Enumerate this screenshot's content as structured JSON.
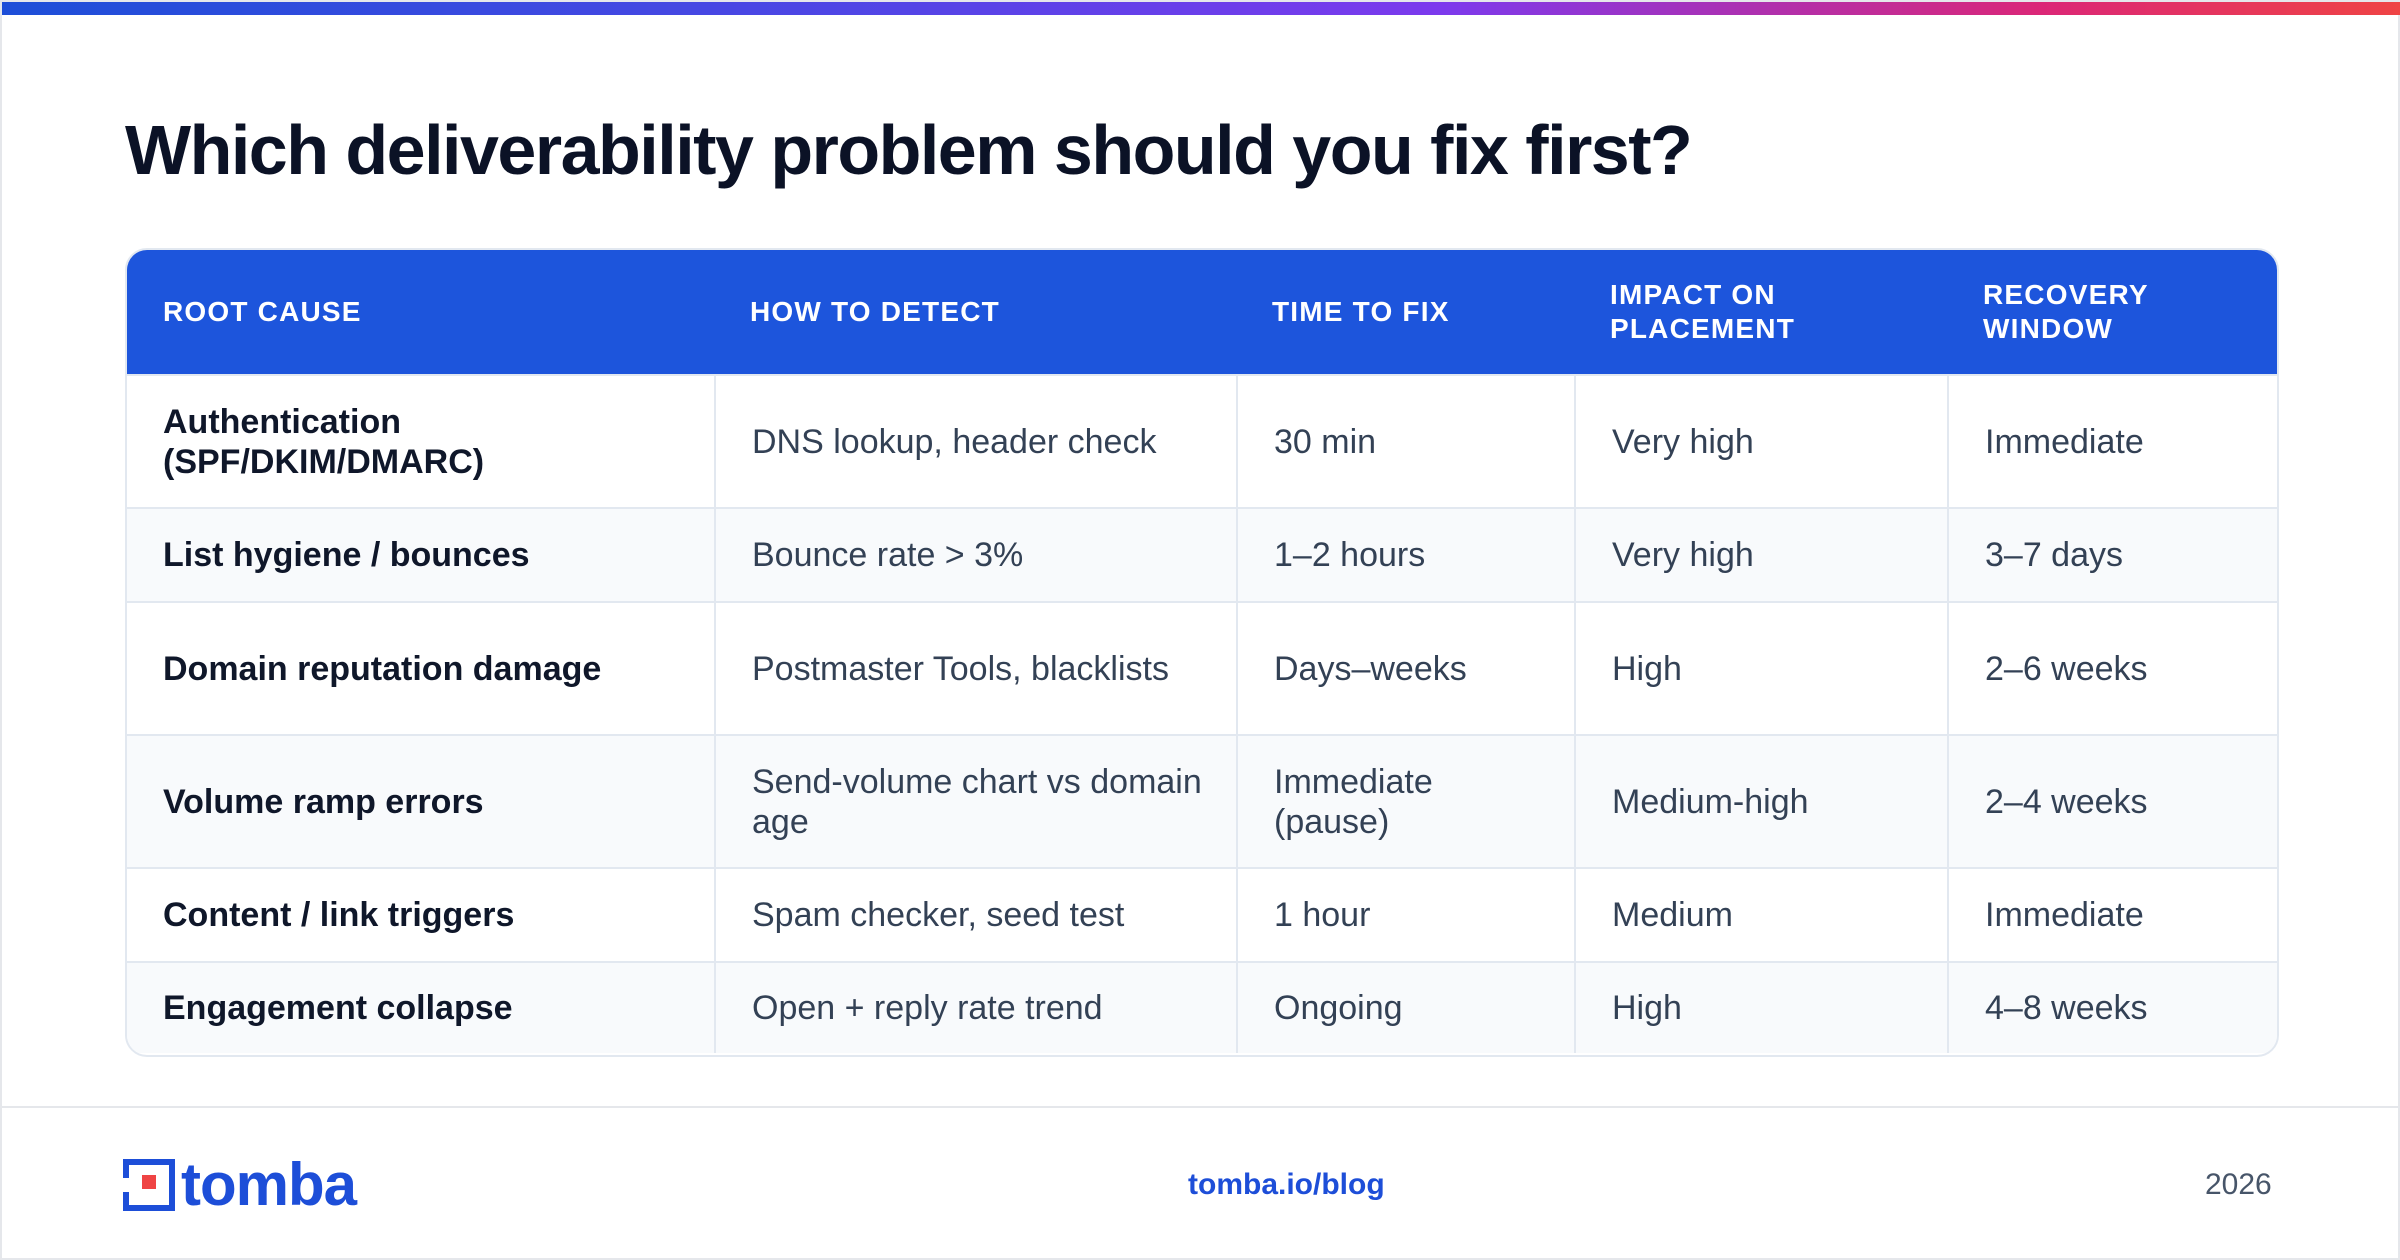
{
  "title": "Which deliverability problem should you fix first?",
  "table": {
    "headers": [
      "ROOT CAUSE",
      "HOW TO DETECT",
      "TIME TO FIX",
      "IMPACT ON PLACEMENT",
      "RECOVERY WINDOW"
    ],
    "rows": [
      [
        "Authentication (SPF/DKIM/DMARC)",
        "DNS lookup, header check",
        "30 min",
        "Very high",
        "Immediate"
      ],
      [
        "List hygiene / bounces",
        "Bounce rate > 3%",
        "1–2 hours",
        "Very high",
        "3–7 days"
      ],
      [
        "Domain reputation damage",
        "Postmaster Tools, blacklists",
        "Days–weeks",
        "High",
        "2–6 weeks"
      ],
      [
        "Volume ramp errors",
        "Send-volume chart vs domain age",
        "Immediate (pause)",
        "Medium-high",
        "2–4 weeks"
      ],
      [
        "Content / link triggers",
        "Spam checker, seed test",
        "1 hour",
        "Medium",
        "Immediate"
      ],
      [
        "Engagement collapse",
        "Open + reply rate trend",
        "Ongoing",
        "High",
        "4–8 weeks"
      ]
    ]
  },
  "footer": {
    "logo_text": "tomba",
    "link": "tomba.io/blog",
    "year": "2026"
  },
  "colors": {
    "accent": "#1d55dc",
    "brand": "#1d4ed8",
    "logo_red": "#ef4444",
    "row_alt": "#f8fafc"
  }
}
